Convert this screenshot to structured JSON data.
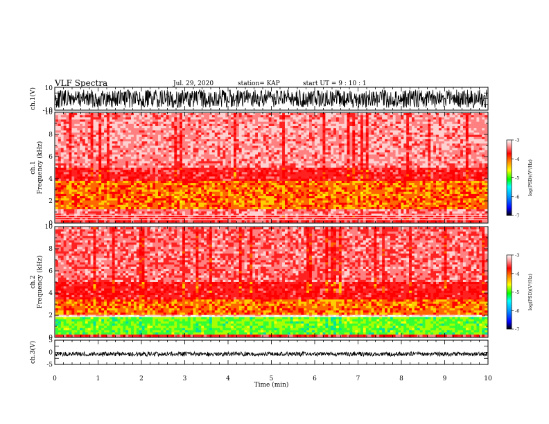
{
  "header": {
    "title": "VLF Spectra",
    "date": "Jul. 29, 2020",
    "station": "station= KAP",
    "start": "start  UT =   9 : 10 : 1"
  },
  "chart_data": [
    {
      "type": "line",
      "ylabel": "ch.1(V)",
      "ylim": [
        -10,
        10
      ],
      "yticks": [
        "10",
        "-10"
      ],
      "xlim": [
        0,
        10
      ]
    },
    {
      "type": "heatmap",
      "ylabel": "ch.1\nFrequency  (kHz)",
      "ylim": [
        0,
        10
      ],
      "yticks": [
        "0",
        "2",
        "4",
        "6",
        "8",
        "10"
      ],
      "xlim": [
        0,
        10
      ],
      "colorbar": {
        "label": "log(PSD)(V²/Hz)",
        "range": [
          -7,
          -3
        ],
        "ticks": [
          "-3",
          "-4",
          "-5",
          "-6",
          "-7"
        ]
      }
    },
    {
      "type": "heatmap",
      "ylabel": "ch.2\nFrequency  (kHz)",
      "ylim": [
        0,
        10
      ],
      "yticks": [
        "0",
        "2",
        "4",
        "6",
        "8",
        "10"
      ],
      "xlim": [
        0,
        10
      ],
      "colorbar": {
        "label": "log(PSD)(V²/Hz)",
        "range": [
          -7,
          -3
        ],
        "ticks": [
          "-3",
          "-4",
          "-5",
          "-6",
          "-7"
        ]
      }
    },
    {
      "type": "line",
      "ylabel": "ch.3(V)",
      "ylim": [
        -5,
        5
      ],
      "yticks": [
        "5",
        "0",
        "-5"
      ],
      "xlim": [
        0,
        10
      ],
      "xlabel": "Time  (min)",
      "xticks": [
        "0",
        "1",
        "2",
        "3",
        "4",
        "5",
        "6",
        "7",
        "8",
        "9",
        "10"
      ]
    }
  ]
}
